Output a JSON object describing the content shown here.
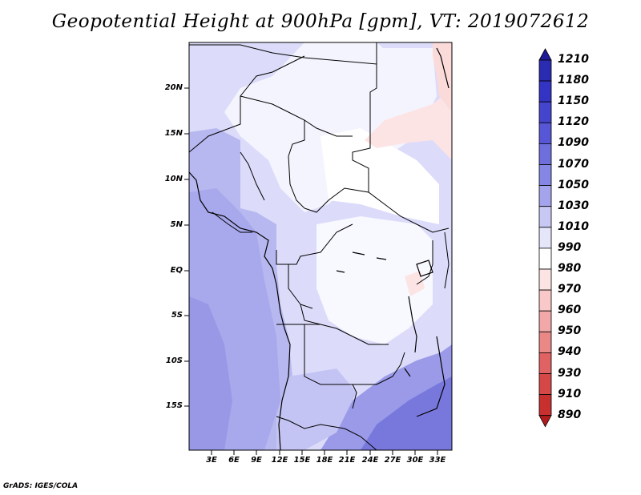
{
  "title": "Geopotential Height at 900hPa [gpm], VT: 2019072612",
  "credit": "GrADS: IGES/COLA",
  "lat_labels": [
    "20N",
    "15N",
    "10N",
    "5N",
    "EQ",
    "5S",
    "10S",
    "15S"
  ],
  "lon_labels": [
    "3E",
    "6E",
    "9E",
    "12E",
    "15E",
    "18E",
    "21E",
    "24E",
    "27E",
    "30E",
    "33E"
  ],
  "colorbar": {
    "levels": [
      "1210",
      "1180",
      "1150",
      "1120",
      "1090",
      "1070",
      "1050",
      "1030",
      "1010",
      "990",
      "980",
      "970",
      "960",
      "950",
      "940",
      "930",
      "910",
      "890"
    ],
    "colors": [
      "#1f1a9a",
      "#2a2bb0",
      "#3434c4",
      "#4444cc",
      "#5656d6",
      "#6e6edc",
      "#8686e4",
      "#a4a4ec",
      "#c8c8f4",
      "#e6e6fa",
      "#ffffff",
      "#fde4e4",
      "#f9c8c8",
      "#f2a8a8",
      "#ea8888",
      "#e06262",
      "#d64848",
      "#c83030",
      "#b01c1c"
    ]
  }
}
